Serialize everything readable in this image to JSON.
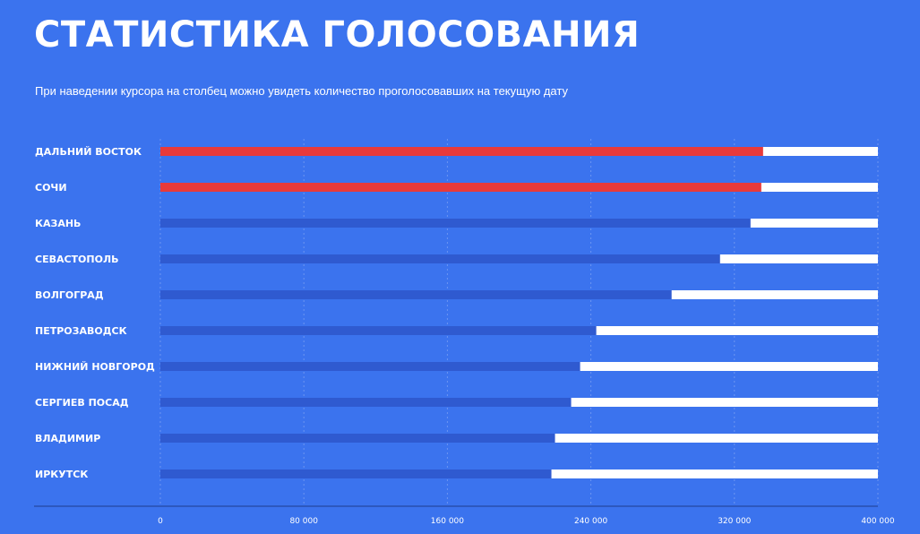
{
  "header": {
    "title": "СТАТИСТИКА ГОЛОСОВАНИЯ",
    "subtitle": "При наведении курсора на столбец можно увидеть количество проголосовавших на текущую дату"
  },
  "colors": {
    "background": "#3b73ee",
    "leader_bar": "#e83a3a",
    "bar": "#2f5ad0",
    "track": "#ffffff"
  },
  "chart_data": {
    "type": "bar",
    "orientation": "horizontal",
    "categories": [
      "ДАЛЬНИЙ ВОСТОК",
      "СОЧИ",
      "КАЗАНЬ",
      "СЕВАСТОПОЛЬ",
      "ВОЛГОГРАД",
      "ПЕТРОЗАВОДСК",
      "НИЖНИЙ НОВГОРОД",
      "СЕРГИЕВ ПОСАД",
      "ВЛАДИМИР",
      "ИРКУТСК"
    ],
    "values": [
      336000,
      335000,
      329000,
      312000,
      285000,
      243000,
      234000,
      229000,
      220000,
      218000
    ],
    "highlighted": [
      "ДАЛЬНИЙ ВОСТОК",
      "СОЧИ"
    ],
    "xlim": [
      0,
      400000
    ],
    "xticks": [
      0,
      80000,
      160000,
      240000,
      320000,
      400000
    ],
    "xtick_labels": [
      "0",
      "80 000",
      "160 000",
      "240 000",
      "320 000",
      "400 000"
    ],
    "grid": true
  }
}
